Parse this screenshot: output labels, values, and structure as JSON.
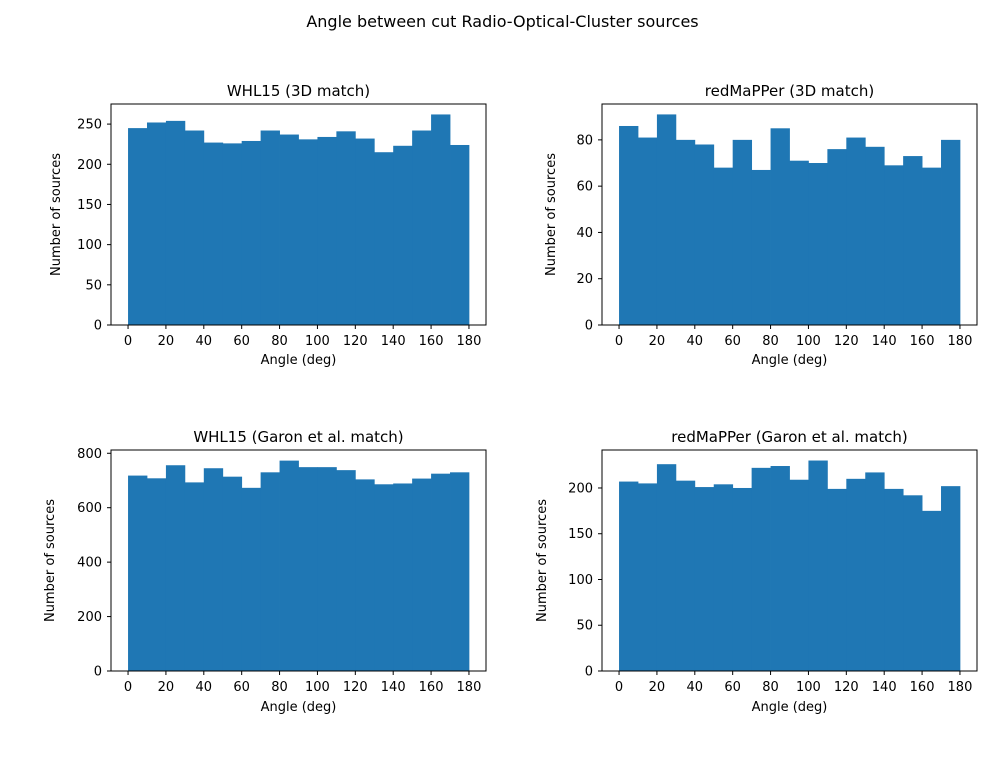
{
  "figure": {
    "suptitle": "Angle between cut Radio-Optical-Cluster sources"
  },
  "chart_data": [
    {
      "type": "bar",
      "title": "WHL15 (3D match)",
      "xlabel": "Angle (deg)",
      "ylabel": "Number of sources",
      "bin_edges": [
        0,
        10,
        20,
        30,
        40,
        50,
        60,
        70,
        80,
        90,
        100,
        110,
        120,
        130,
        140,
        150,
        160,
        170,
        180
      ],
      "values": [
        245,
        252,
        254,
        242,
        227,
        226,
        229,
        242,
        237,
        231,
        234,
        241,
        232,
        215,
        223,
        242,
        262,
        224
      ],
      "xlim": [
        -9,
        189
      ],
      "ylim": [
        0,
        275
      ],
      "xticks": [
        0,
        20,
        40,
        60,
        80,
        100,
        120,
        140,
        160,
        180
      ],
      "yticks": [
        0,
        50,
        100,
        150,
        200,
        250
      ],
      "color": "#1f77b4"
    },
    {
      "type": "bar",
      "title": "redMaPPer (3D match)",
      "xlabel": "Angle (deg)",
      "ylabel": "Number of sources",
      "bin_edges": [
        0,
        10,
        20,
        30,
        40,
        50,
        60,
        70,
        80,
        90,
        100,
        110,
        120,
        130,
        140,
        150,
        160,
        170,
        180
      ],
      "values": [
        86,
        81,
        91,
        80,
        78,
        68,
        80,
        67,
        85,
        71,
        70,
        76,
        81,
        77,
        69,
        73,
        68,
        80
      ],
      "xlim": [
        -9,
        189
      ],
      "ylim": [
        0,
        95.5
      ],
      "xticks": [
        0,
        20,
        40,
        60,
        80,
        100,
        120,
        140,
        160,
        180
      ],
      "yticks": [
        0,
        20,
        40,
        60,
        80
      ],
      "color": "#1f77b4"
    },
    {
      "type": "bar",
      "title": "WHL15 (Garon et al. match)",
      "xlabel": "Angle (deg)",
      "ylabel": "Number of sources",
      "bin_edges": [
        0,
        10,
        20,
        30,
        40,
        50,
        60,
        70,
        80,
        90,
        100,
        110,
        120,
        130,
        140,
        150,
        160,
        170,
        180
      ],
      "values": [
        718,
        708,
        756,
        693,
        745,
        714,
        673,
        730,
        773,
        749,
        749,
        738,
        704,
        686,
        689,
        707,
        725,
        730
      ],
      "xlim": [
        -9,
        189
      ],
      "ylim": [
        0,
        812
      ],
      "xticks": [
        0,
        20,
        40,
        60,
        80,
        100,
        120,
        140,
        160,
        180
      ],
      "yticks": [
        0,
        200,
        400,
        600,
        800
      ],
      "color": "#1f77b4"
    },
    {
      "type": "bar",
      "title": "redMaPPer (Garon et al. match)",
      "xlabel": "Angle (deg)",
      "ylabel": "Number of sources",
      "bin_edges": [
        0,
        10,
        20,
        30,
        40,
        50,
        60,
        70,
        80,
        90,
        100,
        110,
        120,
        130,
        140,
        150,
        160,
        170,
        180
      ],
      "values": [
        207,
        205,
        226,
        208,
        201,
        204,
        200,
        222,
        224,
        209,
        230,
        199,
        210,
        217,
        199,
        192,
        175,
        202
      ],
      "xlim": [
        -9,
        189
      ],
      "ylim": [
        0,
        241.5
      ],
      "xticks": [
        0,
        20,
        40,
        60,
        80,
        100,
        120,
        140,
        160,
        180
      ],
      "yticks": [
        0,
        50,
        100,
        150,
        200
      ],
      "color": "#1f77b4"
    }
  ]
}
